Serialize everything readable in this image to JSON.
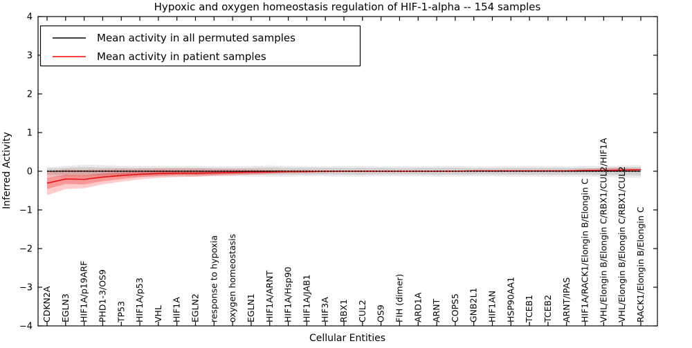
{
  "figure": {
    "title": "Hypoxic and oxygen homeostasis regulation of HIF-1-alpha -- 154 samples",
    "xlabel": "Cellular Entities",
    "ylabel": "Inferred Activity"
  },
  "legend": {
    "position": "upper left",
    "entries": [
      {
        "label": "Mean activity in all permuted samples",
        "color": "#000000"
      },
      {
        "label": "Mean activity in patient samples",
        "color": "#ff0000"
      }
    ]
  },
  "colors": {
    "permuted_line": "#000000",
    "patient_line": "#e81212",
    "permuted_band_outer": "rgba(0,0,0,0.08)",
    "permuted_band_inner": "rgba(0,0,0,0.11)",
    "patient_band_outer": "rgba(255,0,0,0.20)",
    "patient_band_inner": "rgba(235,0,0,0.26)",
    "frame": "#000000"
  },
  "chart_data": {
    "type": "line",
    "title": "Hypoxic and oxygen homeostasis regulation of HIF-1-alpha -- 154 samples",
    "xlabel": "Cellular Entities",
    "ylabel": "Inferred Activity",
    "ylim": [
      -4,
      4
    ],
    "yticks": [
      4,
      3,
      2,
      1,
      0,
      -1,
      -2,
      -3,
      -4
    ],
    "grid": false,
    "legend_position": "upper left",
    "categories": [
      "CDKN2A",
      "EGLN3",
      "HIF1A/p19ARF",
      "PHD1-3/OS9",
      "TP53",
      "HIF1A/p53",
      "VHL",
      "HIF1A",
      "EGLN2",
      "response to hypoxia",
      "oxygen homeostasis",
      "EGLN1",
      "HIF1A/ARNT",
      "HIF1A/Hsp90",
      "HIF1A/JAB1",
      "HIF3A",
      "RBX1",
      "CUL2",
      "OS9",
      "FIH (dimer)",
      "ARD1A",
      "ARNT",
      "COPS5",
      "GNB2L1",
      "HIF1AN",
      "HSP90AA1",
      "TCEB1",
      "TCEB2",
      "ARNT/IPAS",
      "HIF1A/RACK1/Elongin B/Elongin C",
      "VHL/Elongin B/Elongin C/RBX1/CUL2/HIF1A",
      "VHL/Elongin B/Elongin C/RBX1/CUL2",
      "RACK1/Elongin B/Elongin C"
    ],
    "series": [
      {
        "name": "Mean activity in all permuted samples",
        "color": "#000000",
        "values": [
          0,
          0,
          0,
          0,
          0,
          0,
          0,
          0,
          0,
          0,
          0,
          0,
          0,
          0,
          0,
          0,
          0,
          0,
          0,
          0,
          0,
          0,
          0,
          0,
          0,
          0,
          0,
          0,
          0,
          0,
          0,
          0,
          0
        ]
      },
      {
        "name": "Mean activity in patient samples",
        "color": "#e81212",
        "values": [
          -0.31,
          -0.2,
          -0.21,
          -0.15,
          -0.11,
          -0.08,
          -0.06,
          -0.05,
          -0.05,
          -0.04,
          -0.03,
          -0.02,
          -0.02,
          -0.01,
          -0.01,
          0,
          0,
          0,
          0,
          0,
          0,
          0,
          0,
          0.01,
          0.01,
          0.01,
          0.01,
          0.01,
          0.01,
          0.02,
          0.02,
          0.03,
          0.04
        ]
      }
    ],
    "bands": [
      {
        "name": "permuted-outer",
        "upper": [
          0.1,
          0.14,
          0.17,
          0.16,
          0.14,
          0.14,
          0.14,
          0.14,
          0.14,
          0.13,
          0.13,
          0.14,
          0.15,
          0.14,
          0.13,
          0.13,
          0.14,
          0.14,
          0.13,
          0.13,
          0.13,
          0.14,
          0.14,
          0.13,
          0.13,
          0.14,
          0.14,
          0.14,
          0.13,
          0.14,
          0.14,
          0.15,
          0.16
        ],
        "lower": [
          -0.14,
          -0.16,
          -0.17,
          -0.16,
          -0.15,
          -0.14,
          -0.14,
          -0.14,
          -0.14,
          -0.13,
          -0.13,
          -0.14,
          -0.14,
          -0.14,
          -0.13,
          -0.13,
          -0.14,
          -0.14,
          -0.13,
          -0.13,
          -0.13,
          -0.14,
          -0.14,
          -0.13,
          -0.13,
          -0.14,
          -0.14,
          -0.14,
          -0.14,
          -0.14,
          -0.15,
          -0.16,
          -0.17
        ]
      },
      {
        "name": "permuted-inner",
        "upper": [
          0.07,
          0.09,
          0.11,
          0.1,
          0.09,
          0.09,
          0.09,
          0.09,
          0.09,
          0.09,
          0.08,
          0.09,
          0.1,
          0.09,
          0.09,
          0.09,
          0.09,
          0.09,
          0.09,
          0.08,
          0.09,
          0.09,
          0.09,
          0.08,
          0.08,
          0.09,
          0.09,
          0.09,
          0.09,
          0.09,
          0.09,
          0.1,
          0.11
        ],
        "lower": [
          -0.09,
          -0.1,
          -0.11,
          -0.1,
          -0.1,
          -0.09,
          -0.09,
          -0.09,
          -0.09,
          -0.09,
          -0.08,
          -0.09,
          -0.09,
          -0.09,
          -0.09,
          -0.08,
          -0.09,
          -0.09,
          -0.08,
          -0.08,
          -0.08,
          -0.09,
          -0.09,
          -0.08,
          -0.08,
          -0.09,
          -0.09,
          -0.09,
          -0.09,
          -0.09,
          -0.1,
          -0.1,
          -0.11
        ]
      },
      {
        "name": "patient-outer",
        "upper": [
          0.01,
          0.05,
          0.04,
          0.05,
          0.06,
          0.06,
          0.07,
          0.07,
          0.07,
          0.06,
          0.06,
          0.05,
          0.04,
          0.03,
          0.03,
          0.02,
          0.02,
          0.02,
          0.02,
          0.02,
          0.02,
          0.02,
          0.02,
          0.02,
          0.02,
          0.02,
          0.02,
          0.02,
          0.03,
          0.06,
          0.08,
          0.09,
          0.07
        ],
        "lower": [
          -0.62,
          -0.46,
          -0.44,
          -0.34,
          -0.27,
          -0.21,
          -0.17,
          -0.15,
          -0.14,
          -0.12,
          -0.11,
          -0.09,
          -0.07,
          -0.05,
          -0.04,
          -0.03,
          -0.02,
          -0.02,
          -0.02,
          -0.02,
          -0.02,
          -0.02,
          -0.01,
          -0.01,
          -0.01,
          -0.01,
          -0.01,
          -0.01,
          -0.01,
          0.0,
          0.0,
          0.0,
          0.01
        ]
      },
      {
        "name": "patient-inner",
        "upper": [
          -0.17,
          -0.09,
          -0.1,
          -0.06,
          -0.03,
          -0.02,
          -0.01,
          0.0,
          0.0,
          0.0,
          0.0,
          0.01,
          0.01,
          0.01,
          0.01,
          0.01,
          0.01,
          0.01,
          0.01,
          0.01,
          0.01,
          0.01,
          0.01,
          0.01,
          0.02,
          0.02,
          0.02,
          0.02,
          0.02,
          0.03,
          0.04,
          0.05,
          0.05
        ],
        "lower": [
          -0.46,
          -0.33,
          -0.34,
          -0.26,
          -0.2,
          -0.15,
          -0.12,
          -0.1,
          -0.1,
          -0.09,
          -0.07,
          -0.06,
          -0.04,
          -0.03,
          -0.02,
          -0.02,
          -0.01,
          -0.01,
          -0.01,
          -0.01,
          -0.01,
          -0.01,
          -0.01,
          0.0,
          0.0,
          0.0,
          0.0,
          0.0,
          0.0,
          0.01,
          0.01,
          0.01,
          0.02
        ]
      }
    ]
  }
}
